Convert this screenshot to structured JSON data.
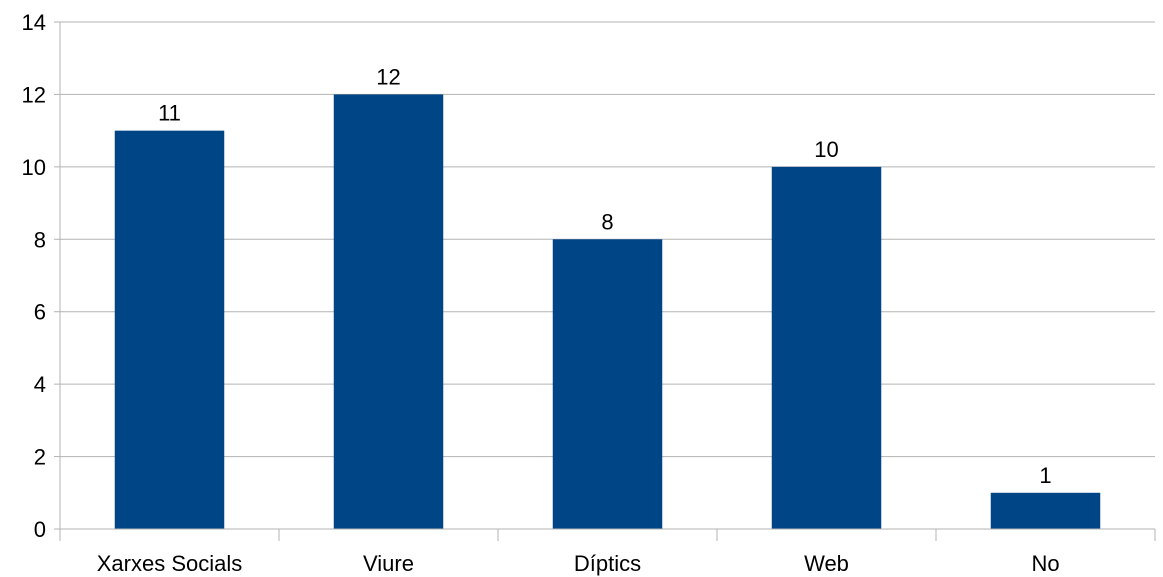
{
  "chart_data": {
    "type": "bar",
    "categories": [
      "Xarxes Socials",
      "Viure",
      "Díptics",
      "Web",
      "No"
    ],
    "values": [
      11,
      12,
      8,
      10,
      1
    ],
    "ylim": [
      0,
      14
    ],
    "yticks": [
      0,
      2,
      4,
      6,
      8,
      10,
      12,
      14
    ],
    "grid": true,
    "legend": "none",
    "data_labels": true,
    "bar_color": "#004586",
    "grid_color": "#b3b3b3",
    "axis_color": "#b3b3b3"
  }
}
